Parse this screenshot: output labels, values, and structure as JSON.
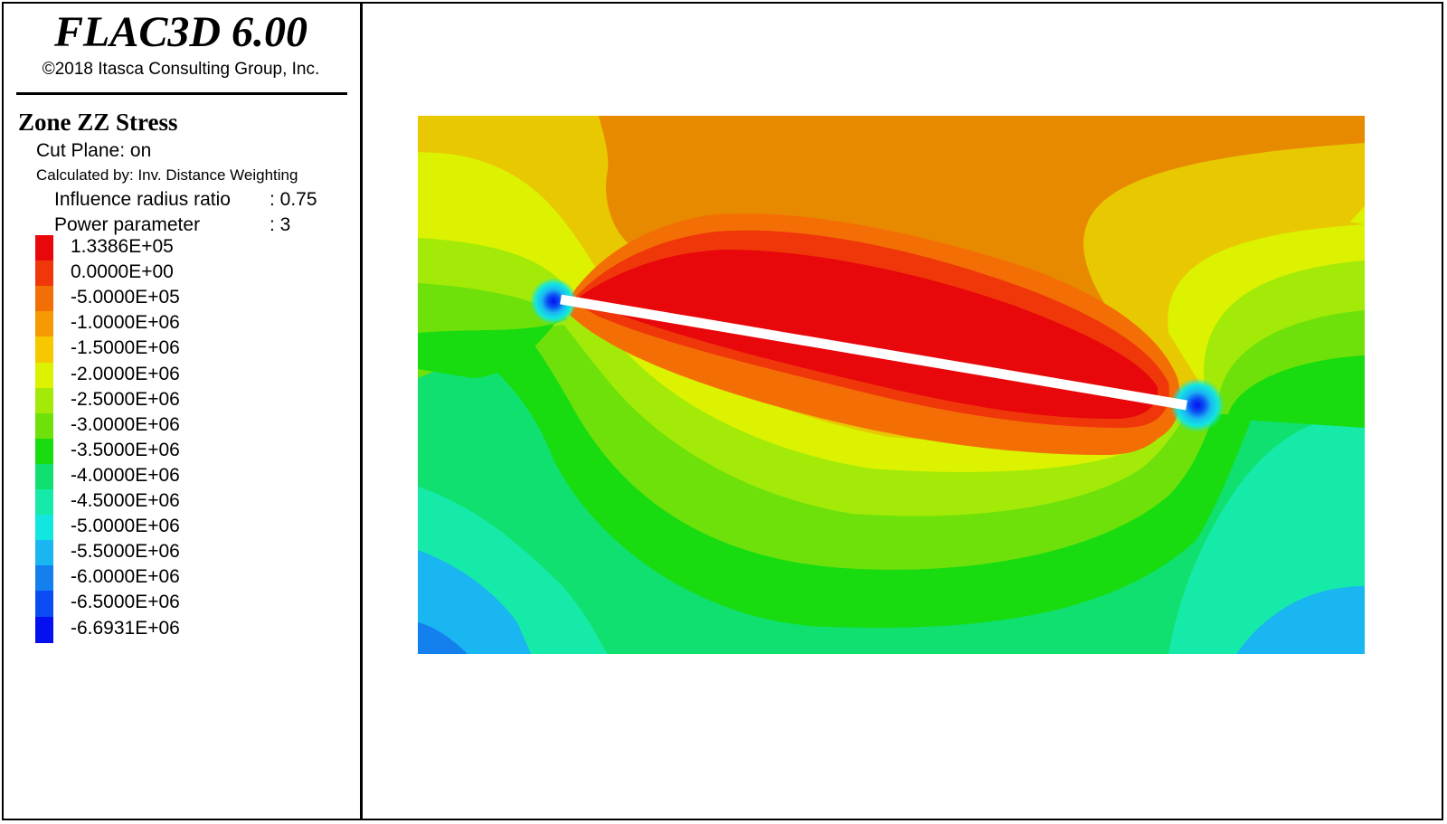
{
  "header": {
    "app_title": "FLAC3D 6.00",
    "copyright": "©2018 Itasca Consulting Group, Inc."
  },
  "plot_info": {
    "title": "Zone ZZ Stress",
    "cut_plane": "Cut Plane: on",
    "calculated_by": "Calculated by: Inv. Distance Weighting",
    "influence_radius_label": "Influence radius ratio",
    "influence_radius_value": ": 0.75",
    "power_parameter_label": "Power parameter",
    "power_parameter_value": ": 3"
  },
  "legend": {
    "levels": [
      {
        "label": "1.3386E+05",
        "color": "#e8070b"
      },
      {
        "label": "0.0000E+00",
        "color": "#f0370a"
      },
      {
        "label": "-5.0000E+05",
        "color": "#f36f05"
      },
      {
        "label": "-1.0000E+06",
        "color": "#f59a02"
      },
      {
        "label": "-1.5000E+06",
        "color": "#f7c800"
      },
      {
        "label": "-2.0000E+06",
        "color": "#dcf200"
      },
      {
        "label": "-2.5000E+06",
        "color": "#a3ea08"
      },
      {
        "label": "-3.0000E+06",
        "color": "#6fe10a"
      },
      {
        "label": "-3.5000E+06",
        "color": "#18dc10"
      },
      {
        "label": "-4.0000E+06",
        "color": "#10e070"
      },
      {
        "label": "-4.5000E+06",
        "color": "#16eaa8"
      },
      {
        "label": "-5.0000E+06",
        "color": "#12e6e0"
      },
      {
        "label": "-5.5000E+06",
        "color": "#1ab6f2"
      },
      {
        "label": "-6.0000E+06",
        "color": "#1480ee"
      },
      {
        "label": "-6.5000E+06",
        "color": "#0a4cf4"
      },
      {
        "label": "-6.6931E+06",
        "color": "#0510f0"
      }
    ]
  },
  "colors": {
    "crack": "#ffffff",
    "background": "#ffffff",
    "frame": "#000000"
  }
}
